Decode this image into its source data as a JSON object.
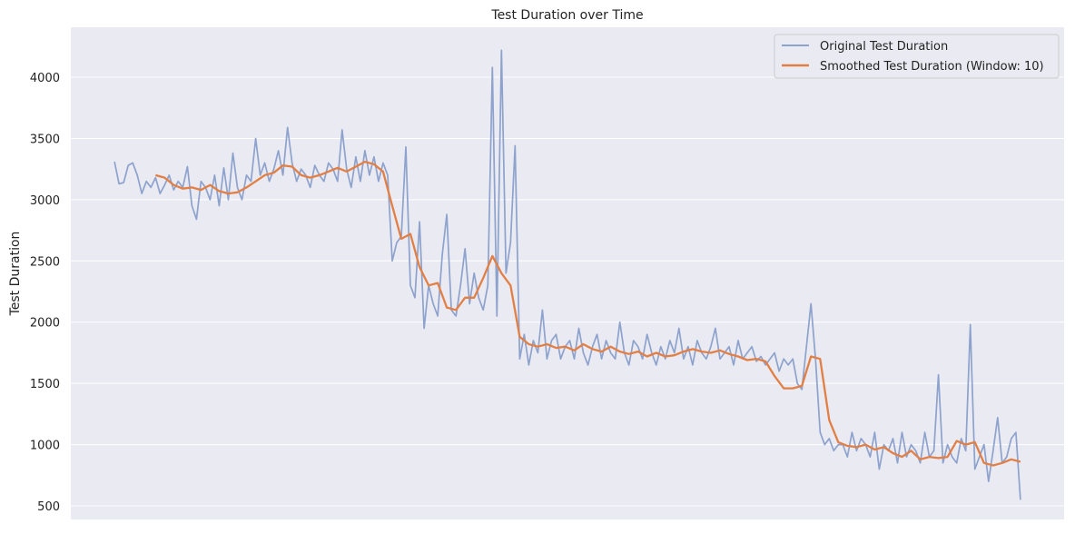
{
  "chart_data": {
    "type": "line",
    "title": "Test Duration over Time",
    "xlabel": "",
    "ylabel": "Test Duration",
    "xlim": [
      -9.6,
      208.6
    ],
    "ylim": [
      389,
      4408
    ],
    "yticks": [
      500,
      1000,
      1500,
      2000,
      2500,
      3000,
      3500,
      4000
    ],
    "grid": true,
    "legend_placement": "top-right",
    "colors": {
      "background": "#eaeaf2",
      "grid": "#ffffff",
      "original": "#8da2cc",
      "smoothed": "#e17f45"
    },
    "series": [
      {
        "name": "Original Test Duration",
        "x_start": 0,
        "x_step": 1,
        "values": [
          3310,
          3130,
          3140,
          3280,
          3300,
          3200,
          3050,
          3150,
          3100,
          3180,
          3050,
          3120,
          3200,
          3080,
          3150,
          3100,
          3270,
          2950,
          2840,
          3150,
          3100,
          3000,
          3200,
          2950,
          3260,
          3000,
          3380,
          3100,
          3000,
          3200,
          3150,
          3500,
          3200,
          3300,
          3150,
          3250,
          3400,
          3200,
          3590,
          3300,
          3150,
          3250,
          3200,
          3100,
          3280,
          3200,
          3150,
          3300,
          3250,
          3150,
          3570,
          3250,
          3100,
          3350,
          3150,
          3400,
          3200,
          3350,
          3150,
          3300,
          3200,
          2500,
          2650,
          2700,
          3430,
          2300,
          2200,
          2820,
          1950,
          2300,
          2150,
          2050,
          2550,
          2880,
          2100,
          2050,
          2300,
          2600,
          2150,
          2400,
          2200,
          2100,
          2300,
          4080,
          2050,
          4220,
          2400,
          2650,
          3440,
          1700,
          1900,
          1650,
          1850,
          1750,
          2100,
          1700,
          1850,
          1900,
          1700,
          1800,
          1850,
          1700,
          1950,
          1750,
          1650,
          1800,
          1900,
          1700,
          1850,
          1750,
          1700,
          2000,
          1750,
          1650,
          1850,
          1800,
          1700,
          1900,
          1750,
          1650,
          1800,
          1700,
          1850,
          1750,
          1950,
          1700,
          1800,
          1650,
          1850,
          1750,
          1700,
          1800,
          1950,
          1700,
          1750,
          1800,
          1650,
          1850,
          1700,
          1750,
          1800,
          1680,
          1720,
          1650,
          1700,
          1750,
          1600,
          1700,
          1650,
          1700,
          1500,
          1450,
          1800,
          2150,
          1700,
          1100,
          1000,
          1050,
          950,
          1000,
          1000,
          900,
          1100,
          950,
          1050,
          1000,
          900,
          1100,
          800,
          1000,
          950,
          1050,
          850,
          1100,
          900,
          1000,
          950,
          850,
          1100,
          900,
          950,
          1570,
          850,
          1000,
          900,
          850,
          1050,
          950,
          1980,
          800,
          900,
          1000,
          700,
          950,
          1220,
          850,
          900,
          1050,
          1100,
          550
        ]
      },
      {
        "name": "Smoothed Test Duration (Window: 10)",
        "x_start": 9,
        "x_step": 2,
        "values": [
          3200,
          3180,
          3120,
          3090,
          3100,
          3080,
          3120,
          3070,
          3050,
          3060,
          3100,
          3150,
          3200,
          3220,
          3280,
          3270,
          3200,
          3180,
          3200,
          3230,
          3260,
          3230,
          3270,
          3310,
          3290,
          3230,
          2950,
          2680,
          2720,
          2450,
          2300,
          2320,
          2120,
          2100,
          2200,
          2200,
          2360,
          2540,
          2400,
          2300,
          1880,
          1820,
          1800,
          1820,
          1790,
          1800,
          1770,
          1820,
          1780,
          1760,
          1800,
          1760,
          1740,
          1760,
          1720,
          1750,
          1720,
          1730,
          1760,
          1780,
          1760,
          1750,
          1770,
          1740,
          1720,
          1690,
          1700,
          1680,
          1560,
          1460,
          1460,
          1480,
          1720,
          1700,
          1200,
          1020,
          990,
          980,
          1000,
          960,
          980,
          930,
          900,
          950,
          880,
          900,
          890,
          900,
          1030,
          1000,
          1020,
          850,
          830,
          850,
          880,
          860
        ]
      }
    ]
  }
}
